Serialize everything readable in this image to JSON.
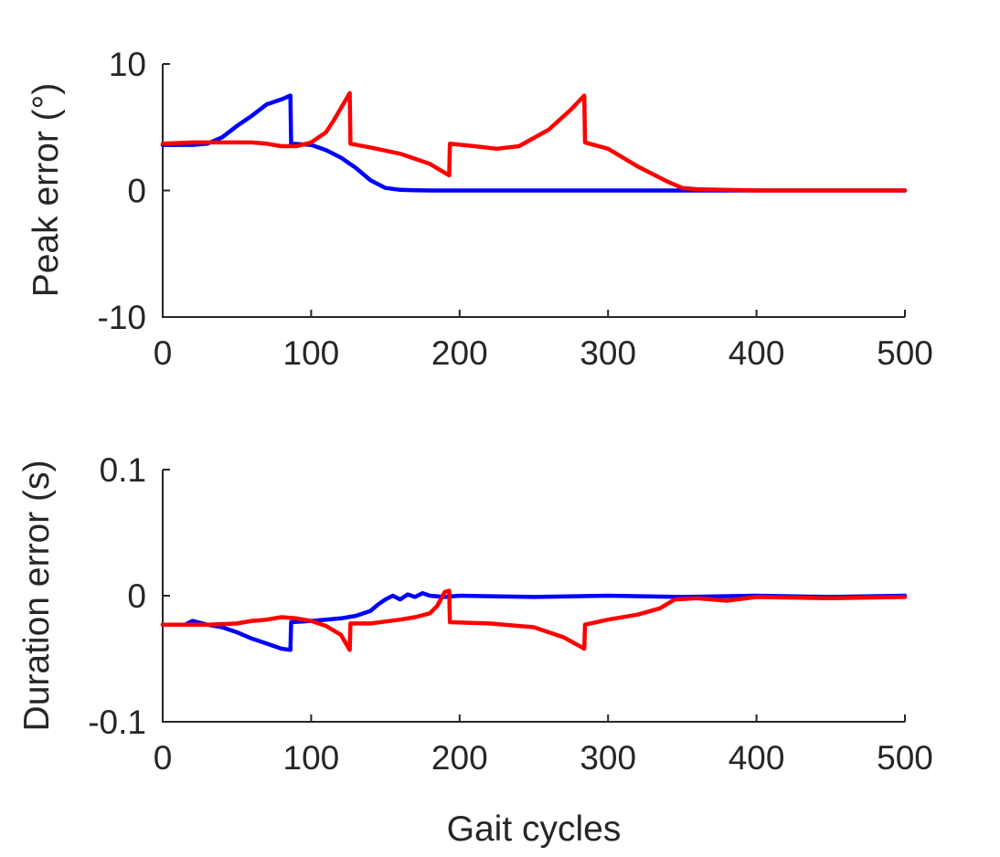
{
  "chart_data": [
    {
      "type": "line",
      "title": "",
      "xlabel": "",
      "ylabel": "Peak error (°)",
      "xlim": [
        0,
        500
      ],
      "ylim": [
        -10,
        10
      ],
      "xticks": [
        0,
        100,
        200,
        300,
        400,
        500
      ],
      "yticks": [
        -10,
        0,
        10
      ],
      "xtick_labels": [
        "0",
        "100",
        "200",
        "300",
        "400",
        "500"
      ],
      "ytick_labels": [
        "-10",
        "0",
        "10"
      ],
      "grid": false,
      "series": [
        {
          "color": "#0000ff",
          "x": [
            0,
            20,
            30,
            40,
            50,
            60,
            70,
            80,
            86,
            86.5,
            100,
            110,
            120,
            130,
            140,
            150,
            160,
            170,
            180,
            200,
            300,
            400,
            500
          ],
          "y": [
            3.6,
            3.6,
            3.7,
            4.2,
            5.1,
            5.9,
            6.8,
            7.2,
            7.5,
            3.7,
            3.6,
            3.2,
            2.6,
            1.8,
            0.8,
            0.2,
            0.05,
            0.02,
            0,
            0,
            0,
            0,
            0
          ]
        },
        {
          "color": "#ff0000",
          "x": [
            0,
            20,
            40,
            60,
            70,
            80,
            90,
            100,
            110,
            115,
            120,
            126,
            126.5,
            140,
            160,
            180,
            193,
            193.5,
            210,
            225,
            240,
            260,
            275,
            284,
            284.5,
            300,
            320,
            340,
            350,
            360,
            400,
            500
          ],
          "y": [
            3.7,
            3.8,
            3.8,
            3.8,
            3.7,
            3.5,
            3.5,
            3.8,
            4.6,
            5.5,
            6.5,
            7.7,
            3.7,
            3.4,
            2.9,
            2.1,
            1.2,
            3.7,
            3.5,
            3.3,
            3.5,
            4.8,
            6.4,
            7.5,
            3.8,
            3.3,
            1.9,
            0.7,
            0.2,
            0.1,
            0,
            0
          ]
        }
      ]
    },
    {
      "type": "line",
      "title": "",
      "xlabel": "Gait cycles",
      "ylabel": "Duration error (s)",
      "xlim": [
        0,
        500
      ],
      "ylim": [
        -0.1,
        0.1
      ],
      "xticks": [
        0,
        100,
        200,
        300,
        400,
        500
      ],
      "yticks": [
        -0.1,
        0,
        0.1
      ],
      "xtick_labels": [
        "0",
        "100",
        "200",
        "300",
        "400",
        "500"
      ],
      "ytick_labels": [
        "-0.1",
        "0",
        "0.1"
      ],
      "grid": false,
      "series": [
        {
          "color": "#0000ff",
          "x": [
            0,
            15,
            20,
            30,
            40,
            50,
            60,
            70,
            80,
            86,
            86.5,
            100,
            110,
            120,
            130,
            140,
            145,
            150,
            155,
            160,
            165,
            170,
            175,
            180,
            190,
            200,
            250,
            300,
            350,
            400,
            450,
            500
          ],
          "y": [
            -0.023,
            -0.023,
            -0.02,
            -0.023,
            -0.025,
            -0.029,
            -0.034,
            -0.038,
            -0.042,
            -0.043,
            -0.021,
            -0.02,
            -0.019,
            -0.018,
            -0.016,
            -0.012,
            -0.007,
            -0.003,
            0,
            -0.003,
            0.001,
            -0.001,
            0.002,
            0,
            -0.001,
            0,
            -0.001,
            0,
            -0.001,
            0,
            -0.001,
            0
          ]
        },
        {
          "color": "#ff0000",
          "x": [
            0,
            30,
            50,
            60,
            70,
            80,
            90,
            100,
            110,
            120,
            126,
            126.5,
            140,
            160,
            170,
            180,
            185,
            190,
            193,
            193.5,
            220,
            250,
            270,
            284,
            284.5,
            300,
            320,
            335,
            345,
            360,
            380,
            400,
            450,
            500
          ],
          "y": [
            -0.023,
            -0.023,
            -0.022,
            -0.02,
            -0.019,
            -0.017,
            -0.018,
            -0.02,
            -0.024,
            -0.031,
            -0.043,
            -0.022,
            -0.022,
            -0.019,
            -0.017,
            -0.014,
            -0.008,
            0.003,
            0.004,
            -0.021,
            -0.022,
            -0.025,
            -0.033,
            -0.042,
            -0.023,
            -0.019,
            -0.015,
            -0.01,
            -0.003,
            -0.002,
            -0.004,
            -0.001,
            -0.002,
            -0.001
          ]
        }
      ]
    }
  ]
}
